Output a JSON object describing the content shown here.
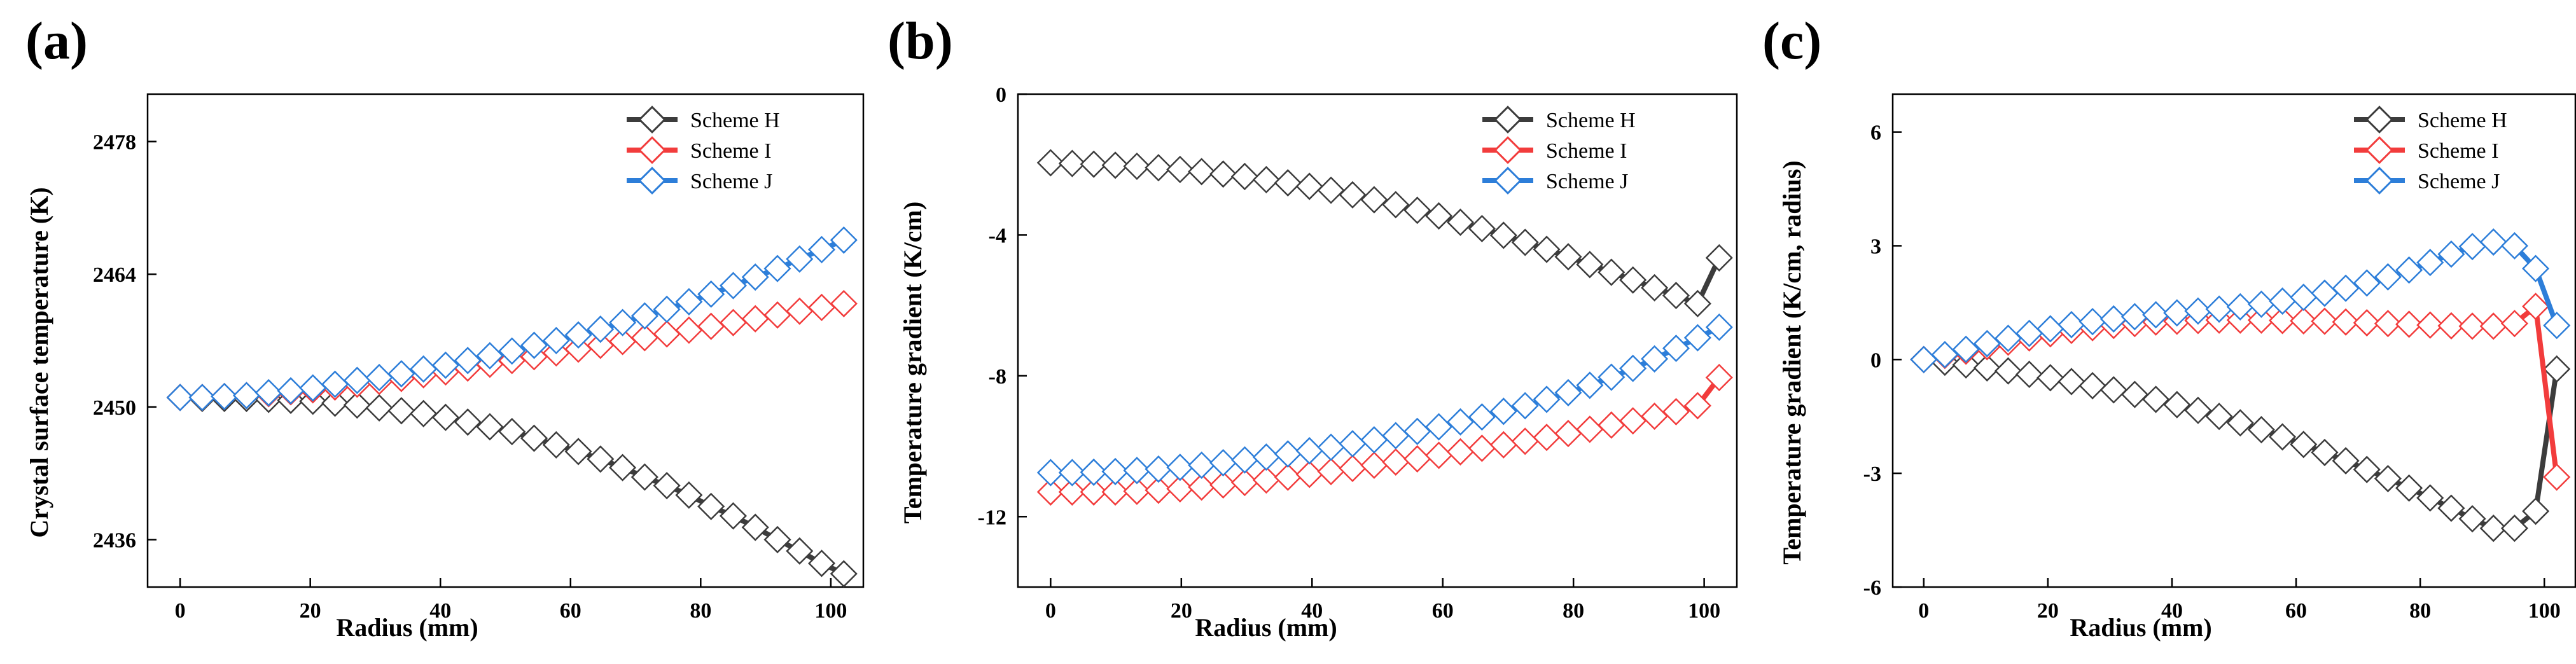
{
  "chart_data": [
    {
      "type": "line",
      "panel_label": "(a)",
      "xlabel": "Radius (mm)",
      "ylabel": "Crystal surface temperature  (K)",
      "xlim": [
        -5,
        105
      ],
      "ylim": [
        2431,
        2483
      ],
      "xticks": [
        0,
        20,
        40,
        60,
        80,
        100
      ],
      "yticks": [
        2436,
        2450,
        2464,
        2478
      ],
      "grid": false,
      "legend_position": "top-right",
      "series": [
        {
          "name": "Scheme H",
          "color": "#3c3c3c",
          "marker_color": "#3c3c3c",
          "x": [
            0,
            3.4,
            6.8,
            10.2,
            13.6,
            17,
            20.4,
            23.8,
            27.2,
            30.6,
            34,
            37.4,
            40.8,
            44.2,
            47.6,
            51,
            54.4,
            57.8,
            61.2,
            64.6,
            68,
            71.4,
            74.8,
            78.2,
            81.6,
            85,
            88.4,
            91.8,
            95.2,
            98.6,
            102
          ],
          "y": [
            2451.0,
            2450.9,
            2450.9,
            2450.9,
            2450.8,
            2450.7,
            2450.6,
            2450.4,
            2450.2,
            2449.9,
            2449.6,
            2449.3,
            2448.9,
            2448.4,
            2447.9,
            2447.4,
            2446.7,
            2446.0,
            2445.3,
            2444.5,
            2443.6,
            2442.6,
            2441.7,
            2440.7,
            2439.5,
            2438.5,
            2437.3,
            2436.0,
            2434.8,
            2433.5,
            2432.4
          ]
        },
        {
          "name": "Scheme I",
          "color": "#f23c3c",
          "marker_color": "#f23c3c",
          "x": [
            0,
            3.4,
            6.8,
            10.2,
            13.6,
            17,
            20.4,
            23.8,
            27.2,
            30.6,
            34,
            37.4,
            40.8,
            44.2,
            47.6,
            51,
            54.4,
            57.8,
            61.2,
            64.6,
            68,
            71.4,
            74.8,
            78.2,
            81.6,
            85,
            88.4,
            91.8,
            95.2,
            98.6,
            102
          ],
          "y": [
            2451.0,
            2451.0,
            2451.1,
            2451.2,
            2451.4,
            2451.6,
            2451.8,
            2452.1,
            2452.4,
            2452.7,
            2453.0,
            2453.4,
            2453.7,
            2454.1,
            2454.5,
            2454.9,
            2455.3,
            2455.7,
            2456.1,
            2456.5,
            2456.9,
            2457.3,
            2457.7,
            2458.1,
            2458.5,
            2458.9,
            2459.3,
            2459.7,
            2460.1,
            2460.5,
            2460.9
          ]
        },
        {
          "name": "Scheme J",
          "color": "#2d7ed9",
          "marker_color": "#2d7ed9",
          "x": [
            0,
            3.4,
            6.8,
            10.2,
            13.6,
            17,
            20.4,
            23.8,
            27.2,
            30.6,
            34,
            37.4,
            40.8,
            44.2,
            47.6,
            51,
            54.4,
            57.8,
            61.2,
            64.6,
            68,
            71.4,
            74.8,
            78.2,
            81.6,
            85,
            88.4,
            91.8,
            95.2,
            98.6,
            102
          ],
          "y": [
            2451.0,
            2451.0,
            2451.1,
            2451.2,
            2451.5,
            2451.7,
            2452.0,
            2452.4,
            2452.8,
            2453.1,
            2453.5,
            2454.0,
            2454.4,
            2454.9,
            2455.4,
            2455.9,
            2456.5,
            2457.0,
            2457.6,
            2458.2,
            2458.9,
            2459.6,
            2460.3,
            2461.1,
            2461.9,
            2462.8,
            2463.7,
            2464.6,
            2465.6,
            2466.6,
            2467.6
          ]
        }
      ],
      "legend": [
        "Scheme H",
        "Scheme I",
        "Scheme J"
      ]
    },
    {
      "type": "line",
      "panel_label": "(b)",
      "xlabel": "Radius (mm)",
      "ylabel": "Temperature gradient (K/cm)",
      "xlim": [
        -5,
        105
      ],
      "ylim": [
        -14,
        0
      ],
      "xticks": [
        0,
        20,
        40,
        60,
        80,
        100
      ],
      "yticks": [
        -12,
        -8,
        -4,
        0
      ],
      "grid": false,
      "legend_position": "top-right",
      "series": [
        {
          "name": "Scheme H",
          "color": "#3c3c3c",
          "marker_color": "#3c3c3c",
          "x": [
            0,
            3.3,
            6.6,
            9.9,
            13.2,
            16.5,
            19.8,
            23.1,
            26.4,
            29.7,
            33,
            36.3,
            39.6,
            42.9,
            46.2,
            49.5,
            52.8,
            56.1,
            59.4,
            62.7,
            66,
            69.3,
            72.6,
            75.9,
            79.2,
            82.5,
            85.8,
            89.1,
            92.4,
            95.7,
            99,
            102.3
          ],
          "y": [
            -1.95,
            -1.97,
            -1.99,
            -2.02,
            -2.05,
            -2.09,
            -2.14,
            -2.2,
            -2.27,
            -2.34,
            -2.43,
            -2.52,
            -2.62,
            -2.73,
            -2.86,
            -3.0,
            -3.14,
            -3.3,
            -3.46,
            -3.64,
            -3.82,
            -4.01,
            -4.21,
            -4.41,
            -4.62,
            -4.84,
            -5.06,
            -5.28,
            -5.5,
            -5.72,
            -5.95,
            -4.65
          ]
        },
        {
          "name": "Scheme I",
          "color": "#f23c3c",
          "marker_color": "#f23c3c",
          "x": [
            0,
            3.3,
            6.6,
            9.9,
            13.2,
            16.5,
            19.8,
            23.1,
            26.4,
            29.7,
            33,
            36.3,
            39.6,
            42.9,
            46.2,
            49.5,
            52.8,
            56.1,
            59.4,
            62.7,
            66,
            69.3,
            72.6,
            75.9,
            79.2,
            82.5,
            85.8,
            89.1,
            92.4,
            95.7,
            99,
            102.3
          ],
          "y": [
            -11.3,
            -11.3,
            -11.3,
            -11.3,
            -11.28,
            -11.25,
            -11.21,
            -11.16,
            -11.1,
            -11.03,
            -10.96,
            -10.88,
            -10.8,
            -10.72,
            -10.63,
            -10.54,
            -10.45,
            -10.36,
            -10.26,
            -10.16,
            -10.06,
            -9.96,
            -9.86,
            -9.75,
            -9.64,
            -9.52,
            -9.4,
            -9.28,
            -9.15,
            -9.02,
            -8.85,
            -8.05
          ]
        },
        {
          "name": "Scheme J",
          "color": "#2d7ed9",
          "marker_color": "#2d7ed9",
          "x": [
            0,
            3.3,
            6.6,
            9.9,
            13.2,
            16.5,
            19.8,
            23.1,
            26.4,
            29.7,
            33,
            36.3,
            39.6,
            42.9,
            46.2,
            49.5,
            52.8,
            56.1,
            59.4,
            62.7,
            66,
            69.3,
            72.6,
            75.9,
            79.2,
            82.5,
            85.8,
            89.1,
            92.4,
            95.7,
            99,
            102.3
          ],
          "y": [
            -10.75,
            -10.75,
            -10.74,
            -10.72,
            -10.69,
            -10.65,
            -10.6,
            -10.54,
            -10.47,
            -10.39,
            -10.31,
            -10.22,
            -10.13,
            -10.03,
            -9.93,
            -9.82,
            -9.7,
            -9.58,
            -9.45,
            -9.31,
            -9.17,
            -9.01,
            -8.85,
            -8.67,
            -8.48,
            -8.27,
            -8.04,
            -7.79,
            -7.52,
            -7.22,
            -6.92,
            -6.62
          ]
        }
      ],
      "legend": [
        "Scheme H",
        "Scheme I",
        "Scheme J"
      ]
    },
    {
      "type": "line",
      "panel_label": "(c)",
      "xlabel": "Radius (mm)",
      "ylabel": "Temperature gradient (K/cm, radius)",
      "xlim": [
        -5,
        105
      ],
      "ylim": [
        -6,
        7
      ],
      "xticks": [
        0,
        20,
        40,
        60,
        80,
        100
      ],
      "yticks": [
        -6,
        -3,
        0,
        3,
        6
      ],
      "grid": false,
      "legend_position": "top-right",
      "series": [
        {
          "name": "Scheme H",
          "color": "#3c3c3c",
          "marker_color": "#3c3c3c",
          "x": [
            0,
            3.4,
            6.8,
            10.2,
            13.6,
            17,
            20.4,
            23.8,
            27.2,
            30.6,
            34,
            37.4,
            40.8,
            44.2,
            47.6,
            51,
            54.4,
            57.8,
            61.2,
            64.6,
            68,
            71.4,
            74.8,
            78.2,
            81.6,
            85,
            88.4,
            91.8,
            95.2,
            98.6,
            102
          ],
          "y": [
            0,
            -0.07,
            -0.14,
            -0.22,
            -0.3,
            -0.39,
            -0.48,
            -0.58,
            -0.69,
            -0.8,
            -0.92,
            -1.05,
            -1.19,
            -1.34,
            -1.5,
            -1.67,
            -1.85,
            -2.04,
            -2.24,
            -2.45,
            -2.67,
            -2.9,
            -3.14,
            -3.39,
            -3.65,
            -3.92,
            -4.2,
            -4.45,
            -4.45,
            -4.0,
            -0.25
          ]
        },
        {
          "name": "Scheme I",
          "color": "#f23c3c",
          "marker_color": "#f23c3c",
          "x": [
            0,
            3.4,
            6.8,
            10.2,
            13.6,
            17,
            20.4,
            23.8,
            27.2,
            30.6,
            34,
            37.4,
            40.8,
            44.2,
            47.6,
            51,
            54.4,
            57.8,
            61.2,
            64.6,
            68,
            71.4,
            74.8,
            78.2,
            81.6,
            85,
            88.4,
            91.8,
            95.2,
            98.6,
            102
          ],
          "y": [
            0,
            0.11,
            0.22,
            0.34,
            0.46,
            0.57,
            0.68,
            0.77,
            0.84,
            0.9,
            0.95,
            0.99,
            1.01,
            1.03,
            1.04,
            1.04,
            1.04,
            1.03,
            1.02,
            1.01,
            0.99,
            0.97,
            0.95,
            0.93,
            0.91,
            0.89,
            0.88,
            0.88,
            0.95,
            1.4,
            -3.1
          ]
        },
        {
          "name": "Scheme J",
          "color": "#2d7ed9",
          "marker_color": "#2d7ed9",
          "x": [
            0,
            3.4,
            6.8,
            10.2,
            13.6,
            17,
            20.4,
            23.8,
            27.2,
            30.6,
            34,
            37.4,
            40.8,
            44.2,
            47.6,
            51,
            54.4,
            57.8,
            61.2,
            64.6,
            68,
            71.4,
            74.8,
            78.2,
            81.6,
            85,
            88.4,
            91.8,
            95.2,
            98.6,
            102
          ],
          "y": [
            0,
            0.13,
            0.27,
            0.42,
            0.56,
            0.69,
            0.81,
            0.92,
            1.0,
            1.07,
            1.13,
            1.18,
            1.23,
            1.28,
            1.33,
            1.39,
            1.46,
            1.54,
            1.64,
            1.75,
            1.88,
            2.02,
            2.18,
            2.36,
            2.56,
            2.78,
            2.98,
            3.1,
            3.0,
            2.4,
            0.9
          ]
        }
      ],
      "legend": [
        "Scheme H",
        "Scheme I",
        "Scheme J"
      ]
    }
  ]
}
